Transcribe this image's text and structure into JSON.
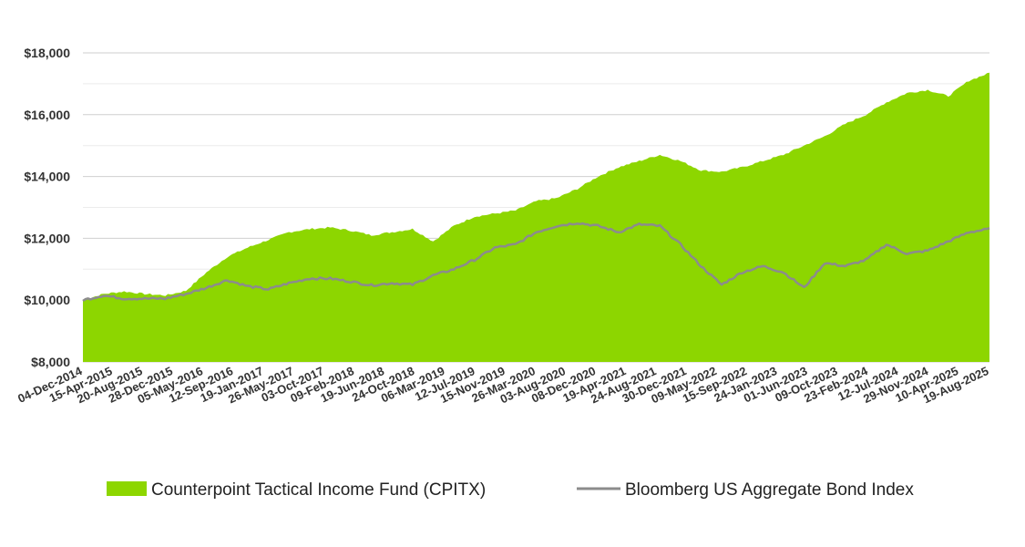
{
  "chart_data": {
    "type": "area",
    "title": "",
    "xlabel": "",
    "ylabel": "",
    "ylim": [
      8000,
      18000
    ],
    "yticks": [
      "$8,000",
      "$10,000",
      "$12,000",
      "$14,000",
      "$16,000",
      "$18,000"
    ],
    "ytick_values": [
      8000,
      10000,
      12000,
      14000,
      16000,
      18000
    ],
    "grid": true,
    "legend_position": "bottom",
    "x_tick_labels": [
      "04-Dec-2014",
      "15-Apr-2015",
      "20-Aug-2015",
      "28-Dec-2015",
      "05-May-2016",
      "12-Sep-2016",
      "19-Jan-2017",
      "26-May-2017",
      "03-Oct-2017",
      "09-Feb-2018",
      "19-Jun-2018",
      "24-Oct-2018",
      "06-Mar-2019",
      "12-Jul-2019",
      "15-Nov-2019",
      "26-Mar-2020",
      "03-Aug-2020",
      "08-Dec-2020",
      "19-Apr-2021",
      "24-Aug-2021",
      "30-Dec-2021",
      "09-May-2022",
      "15-Sep-2022",
      "24-Jan-2023",
      "01-Jun-2023",
      "09-Oct-2023",
      "23-Feb-2024",
      "12-Jul-2024",
      "29-Nov-2024",
      "10-Apr-2025",
      "19-Aug-2025"
    ],
    "x": [
      "2014-12",
      "2015-03",
      "2015-06",
      "2015-09",
      "2015-12",
      "2016-03",
      "2016-06",
      "2016-09",
      "2016-12",
      "2017-03",
      "2017-06",
      "2017-09",
      "2017-12",
      "2018-03",
      "2018-06",
      "2018-09",
      "2018-12",
      "2019-03",
      "2019-06",
      "2019-09",
      "2019-12",
      "2020-03",
      "2020-06",
      "2020-09",
      "2020-12",
      "2021-03",
      "2021-06",
      "2021-09",
      "2021-12",
      "2022-03",
      "2022-06",
      "2022-09",
      "2022-12",
      "2023-03",
      "2023-06",
      "2023-09",
      "2023-12",
      "2024-03",
      "2024-06",
      "2024-09",
      "2024-12",
      "2025-03",
      "2025-06",
      "2025-09",
      "2025-11"
    ],
    "series": [
      {
        "name": "Counterpoint Tactical Income Fund (CPITX)",
        "style": "area",
        "color": "#8dd600",
        "values": [
          10000,
          10200,
          10280,
          10200,
          10150,
          10300,
          10900,
          11400,
          11700,
          11950,
          12200,
          12300,
          12350,
          12250,
          12100,
          12200,
          12300,
          11900,
          12400,
          12700,
          12800,
          12900,
          13200,
          13300,
          13600,
          14000,
          14300,
          14500,
          14700,
          14500,
          14200,
          14150,
          14300,
          14500,
          14700,
          15000,
          15300,
          15700,
          16000,
          16400,
          16700,
          16800,
          16600,
          17100,
          17350
        ]
      },
      {
        "name": "Bloomberg US Aggregate Bond Index",
        "style": "line",
        "color": "#8c8c8c",
        "values": [
          10000,
          10150,
          10050,
          10050,
          10050,
          10200,
          10400,
          10650,
          10450,
          10350,
          10550,
          10700,
          10700,
          10600,
          10480,
          10550,
          10500,
          10800,
          11000,
          11300,
          11700,
          11800,
          12200,
          12400,
          12500,
          12400,
          12200,
          12450,
          12400,
          11800,
          11100,
          10500,
          10900,
          11100,
          10900,
          10400,
          11200,
          11100,
          11300,
          11800,
          11500,
          11600,
          11900,
          12200,
          12300
        ]
      }
    ]
  },
  "legend": {
    "items": [
      {
        "label": "Counterpoint Tactical Income Fund (CPITX)",
        "color": "#8dd600",
        "marker": "swatch"
      },
      {
        "label": "Bloomberg US Aggregate Bond Index",
        "color": "#8c8c8c",
        "marker": "line"
      }
    ]
  }
}
